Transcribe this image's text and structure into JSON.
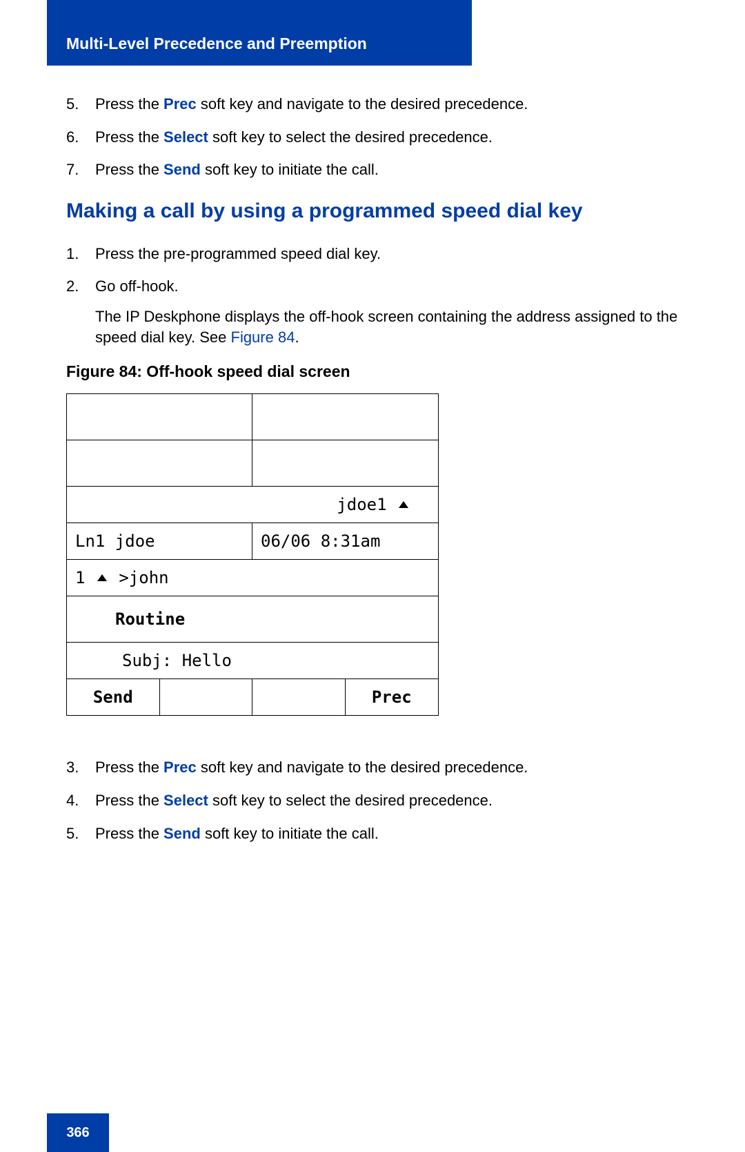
{
  "header": {
    "title": "Multi-Level Precedence and Preemption"
  },
  "top_list": [
    {
      "n": "5.",
      "pre": "Press the ",
      "key": "Prec",
      "post": " soft key and navigate to the desired precedence."
    },
    {
      "n": "6.",
      "pre": "Press the ",
      "key": "Select",
      "post": " soft key to select the desired precedence."
    },
    {
      "n": "7.",
      "pre": "Press the ",
      "key": "Send",
      "post": " soft key to initiate the call."
    }
  ],
  "section_heading": "Making a call by using a programmed speed dial key",
  "mid_list": [
    {
      "n": "1.",
      "text": "Press the pre-programmed speed dial key."
    },
    {
      "n": "2.",
      "text": "Go off-hook."
    }
  ],
  "sub_note": {
    "line": "The IP Deskphone displays the off-hook screen containing the address assigned to the speed dial key. See ",
    "ref": "Figure 84",
    "after": "."
  },
  "figure": {
    "caption": "Figure 84: Off-hook speed dial screen",
    "row3_right": "jdoe1",
    "row4_left": "Ln1 jdoe",
    "row4_right": "06/06 8:31am",
    "row5_left_pre": "1",
    "row5_left_post": ">john",
    "row6": "Routine",
    "row7": "Subj: Hello",
    "softkeys": [
      "Send",
      "",
      "",
      "Prec"
    ]
  },
  "bot_list": [
    {
      "n": "3.",
      "pre": "Press the ",
      "key": "Prec",
      "post": " soft key and navigate to the desired precedence."
    },
    {
      "n": "4.",
      "pre": "Press the ",
      "key": "Select",
      "post": " soft key to select the desired precedence."
    },
    {
      "n": "5.",
      "pre": "Press the ",
      "key": "Send",
      "post": " soft key to initiate the call."
    }
  ],
  "page_number": "366",
  "colors": {
    "brand_blue": "#003da6",
    "text": "#000000",
    "bg": "#ffffff"
  }
}
